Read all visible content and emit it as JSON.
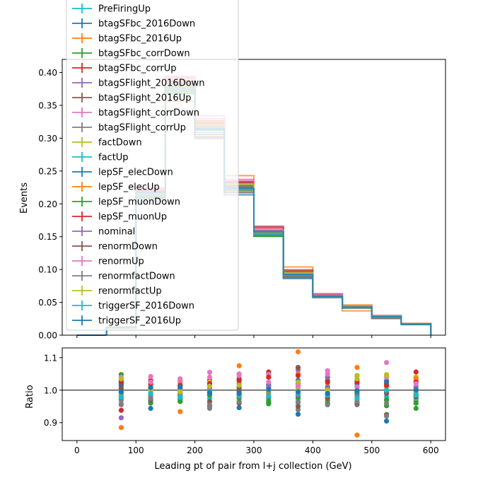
{
  "chart_data": [
    {
      "type": "step",
      "ylabel": "Events",
      "xlim": [
        -25,
        625
      ],
      "ylim": [
        0,
        0.42
      ],
      "bin_edges": [
        50,
        100,
        150,
        200,
        250,
        300,
        350,
        400,
        450,
        500,
        550,
        600
      ],
      "yticks": [
        "0.00",
        "0.05",
        "0.10",
        "0.15",
        "0.20",
        "0.25",
        "0.30",
        "0.35",
        "0.40"
      ],
      "legend_position": "upper-left",
      "nominal": [
        0.012,
        0.216,
        0.381,
        0.317,
        0.226,
        0.157,
        0.093,
        0.06,
        0.043,
        0.028,
        0.017
      ],
      "series": [
        {
          "name": "PreFiringUp",
          "color": "#17becf"
        },
        {
          "name": "btagSFbc_2016Down",
          "color": "#1f77b4"
        },
        {
          "name": "btagSFbc_2016Up",
          "color": "#ff7f0e"
        },
        {
          "name": "btagSFbc_corrDown",
          "color": "#2ca02c"
        },
        {
          "name": "btagSFbc_corrUp",
          "color": "#d62728"
        },
        {
          "name": "btagSFlight_2016Down",
          "color": "#9467bd"
        },
        {
          "name": "btagSFlight_2016Up",
          "color": "#8c564b"
        },
        {
          "name": "btagSFlight_corrDown",
          "color": "#e377c2"
        },
        {
          "name": "btagSFlight_corrUp",
          "color": "#7f7f7f"
        },
        {
          "name": "factDown",
          "color": "#bcbd22"
        },
        {
          "name": "factUp",
          "color": "#17becf"
        },
        {
          "name": "lepSF_elecDown",
          "color": "#1f77b4"
        },
        {
          "name": "lepSF_elecUp",
          "color": "#ff7f0e"
        },
        {
          "name": "lepSF_muonDown",
          "color": "#2ca02c"
        },
        {
          "name": "lepSF_muonUp",
          "color": "#d62728"
        },
        {
          "name": "nominal",
          "color": "#9467bd"
        },
        {
          "name": "renormDown",
          "color": "#8c564b"
        },
        {
          "name": "renormUp",
          "color": "#e377c2"
        },
        {
          "name": "renormfactDown",
          "color": "#7f7f7f"
        },
        {
          "name": "renormfactUp",
          "color": "#bcbd22"
        },
        {
          "name": "triggerSF_2016Down",
          "color": "#17becf"
        },
        {
          "name": "triggerSF_2016Up",
          "color": "#1f77b4"
        }
      ]
    },
    {
      "type": "scatter",
      "xlabel": "Leading pt of pair from l+j collection (GeV)",
      "ylabel": "Ratio",
      "xlim": [
        -25,
        625
      ],
      "ylim": [
        0.845,
        1.13
      ],
      "reference_line": 1.0,
      "xticks": [
        "0",
        "100",
        "200",
        "300",
        "400",
        "500",
        "600"
      ],
      "yticks": [
        "0.9",
        "1.0",
        "1.1"
      ],
      "x": [
        75,
        125,
        175,
        225,
        275,
        325,
        375,
        425,
        475,
        525,
        575
      ],
      "ratios": [
        [
          1.0,
          0.993,
          1.003,
          0.998,
          1.006,
          1.0,
          1.002,
          0.999,
          1.001,
          0.997,
          1.004
        ],
        [
          1.03,
          0.944,
          0.966,
          1.01,
          0.946,
          0.96,
          0.926,
          0.956,
          0.995,
          0.905,
          0.986
        ],
        [
          0.885,
          0.98,
          0.934,
          1.016,
          1.075,
          1.02,
          1.118,
          1.01,
          0.862,
          1.01,
          0.965
        ],
        [
          1.048,
          1.012,
          0.972,
          0.992,
          1.03,
          0.958,
          0.982,
          1.03,
          0.972,
          0.952,
          0.944
        ],
        [
          0.938,
          1.03,
          1.028,
          1.03,
          1.035,
          1.056,
          1.02,
          1.04,
          1.045,
          1.015,
          1.056
        ],
        [
          0.915,
          1.0,
          1.012,
          0.985,
          1.02,
          1.005,
          1.062,
          1.04,
          1.03,
          1.03,
          1.0
        ],
        [
          1.02,
          0.975,
          0.988,
          0.95,
          0.96,
          1.05,
          1.07,
          0.978,
          1.01,
          0.925,
          1.04
        ],
        [
          0.96,
          1.042,
          1.035,
          1.055,
          1.05,
          1.048,
          1.01,
          1.06,
          1.0,
          1.085,
          1.03
        ],
        [
          0.955,
          0.99,
          0.975,
          0.944,
          0.965,
          0.97,
          0.94,
          0.968,
          0.955,
          0.92,
          0.97
        ],
        [
          1.01,
          1.02,
          1.0,
          1.025,
          0.98,
          0.99,
          1.0,
          1.02,
          1.045,
          1.048,
          1.04
        ],
        [
          0.985,
          0.965,
          0.982,
          0.975,
          0.99,
          0.975,
          0.96,
          0.99,
          0.985,
          0.98,
          0.975
        ],
        [
          1.015,
          1.005,
          0.995,
          0.99,
          1.01,
          1.015,
          1.03,
          0.985,
          1.02,
          1.0,
          0.99
        ],
        [
          0.99,
          1.015,
          1.02,
          1.005,
          0.99,
          0.985,
          1.05,
          1.005,
          1.07,
          0.97,
          1.035
        ],
        [
          0.975,
          0.96,
          0.965,
          0.985,
          0.975,
          0.965,
          0.975,
          0.96,
          0.99,
          0.97,
          0.96
        ],
        [
          1.025,
          1.02,
          1.015,
          1.02,
          1.03,
          1.04,
          1.045,
          1.025,
          1.025,
          1.02,
          1.025
        ],
        [
          0.995,
          0.985,
          1.005,
          1.0,
          0.995,
          1.01,
          0.985,
          1.01,
          0.98,
          0.995,
          1.01
        ],
        [
          1.005,
          0.97,
          0.98,
          0.965,
          1.0,
          0.98,
          0.95,
          0.975,
          0.96,
          0.99,
          0.98
        ],
        [
          1.04,
          1.025,
          1.03,
          1.04,
          1.045,
          1.025,
          1.015,
          1.05,
          1.01,
          1.04,
          1.02
        ],
        [
          0.97,
          0.975,
          0.99,
          0.955,
          0.98,
          0.995,
          0.965,
          0.955,
          0.965,
          0.96,
          0.985
        ],
        [
          1.035,
          1.0,
          0.995,
          1.012,
          1.015,
          1.0,
          1.025,
          1.0,
          1.035,
          1.045,
          0.995
        ],
        [
          0.98,
          0.99,
          0.978,
          0.995,
          0.985,
          0.982,
          0.99,
          0.985,
          0.975,
          1.0,
          0.985
        ],
        [
          0.995,
          1.008,
          1.01,
          0.992,
          0.99,
          1.002,
          0.995,
          0.99,
          0.998,
          1.025,
          1.0
        ]
      ]
    }
  ]
}
